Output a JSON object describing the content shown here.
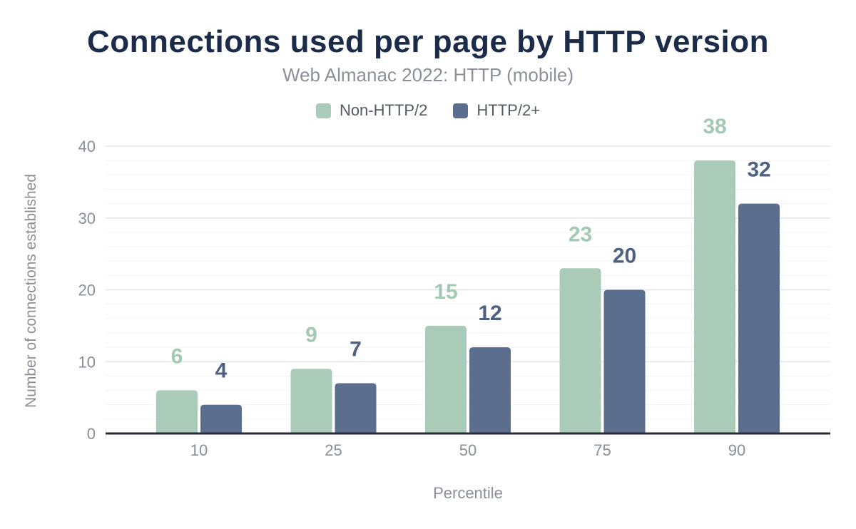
{
  "header": {
    "title": "Connections used per page by HTTP version",
    "subtitle": "Web Almanac 2022: HTTP (mobile)"
  },
  "colors": {
    "title": "#1b2b4a",
    "subtitle": "#8d909a",
    "axis_text": "#8b8e97",
    "axis_line": "#272c34",
    "grid_minor": "#f2f3f5",
    "grid_major": "#e3e6e9",
    "series_green": "#a9cbb8",
    "series_blue": "#5b6e8e"
  },
  "chart_data": {
    "type": "bar",
    "title": "Connections used per page by HTTP version",
    "subtitle": "Web Almanac 2022: HTTP (mobile)",
    "categories": [
      "10",
      "25",
      "50",
      "75",
      "90"
    ],
    "series": [
      {
        "name": "Non-HTTP/2",
        "color": "#a9cbb8",
        "label_color": "#a3c9b4",
        "values": [
          6,
          9,
          15,
          23,
          38
        ]
      },
      {
        "name": "HTTP/2+",
        "color": "#5b6e8e",
        "label_color": "#4e6181",
        "values": [
          4,
          7,
          12,
          20,
          32
        ]
      }
    ],
    "xlabel": "Percentile",
    "ylabel": "Number of connections established",
    "ylim": [
      0,
      40
    ],
    "yticks": [
      0,
      10,
      20,
      30,
      40
    ],
    "minor_grid_step": 2,
    "grid": true,
    "legend_position": "top",
    "value_labels": true
  }
}
